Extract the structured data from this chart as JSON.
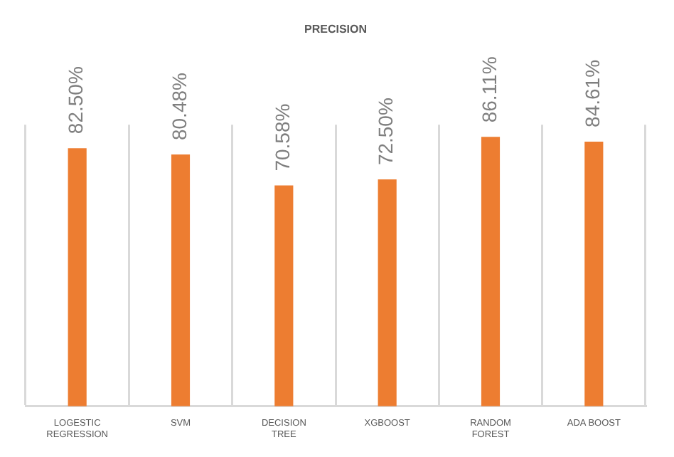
{
  "chart_data": {
    "type": "bar",
    "title": "PRECISION",
    "categories": [
      "LOGESTIC\nREGRESSION",
      "SVM",
      "DECISION\nTREE",
      "XGBOOST",
      "RANDOM\nFOREST",
      "ADA BOOST"
    ],
    "values": [
      82.5,
      80.48,
      70.58,
      72.5,
      86.11,
      84.61
    ],
    "value_labels": [
      "82.50%",
      "80.48%",
      "70.58%",
      "72.50%",
      "86.11%",
      "84.61%"
    ],
    "color": "#ed7d31",
    "grid": "x",
    "legend": false
  }
}
